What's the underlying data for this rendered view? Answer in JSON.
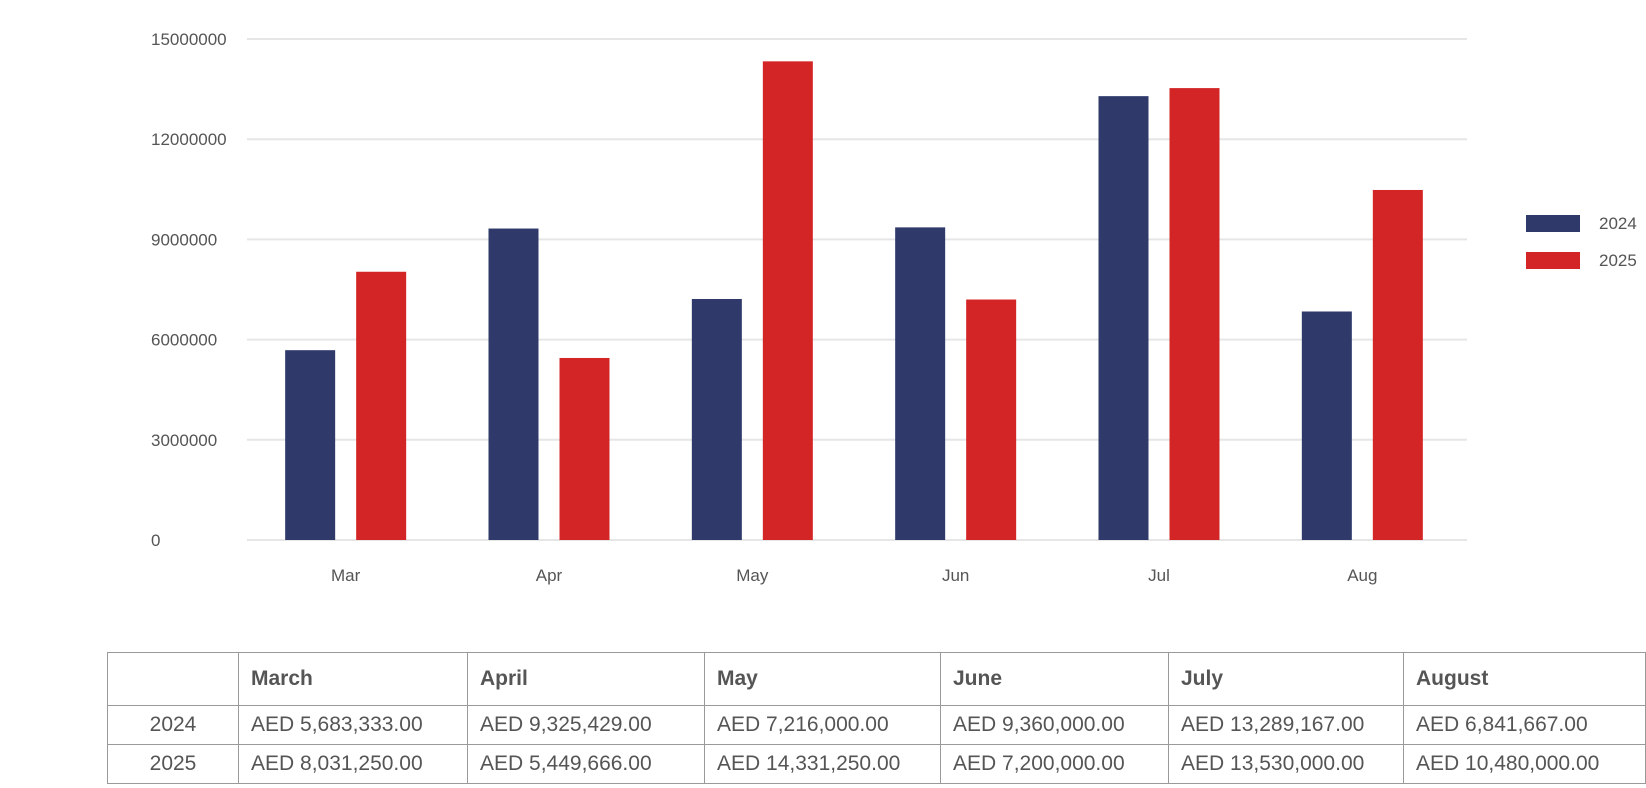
{
  "chart_data": {
    "type": "bar",
    "categories": [
      "Mar",
      "Apr",
      "May",
      "Jun",
      "Jul",
      "Aug"
    ],
    "series": [
      {
        "name": "2024",
        "color": "#2f3a6b",
        "values": [
          5683333,
          9325429,
          7216000,
          9360000,
          13289167,
          6841667
        ]
      },
      {
        "name": "2025",
        "color": "#d32526",
        "values": [
          8031250,
          5449666,
          14331250,
          7200000,
          13530000,
          10480000
        ]
      }
    ],
    "ylim": [
      0,
      15000000
    ],
    "yticks": [
      "0",
      "3000000",
      "6000000",
      "9000000",
      "12000000",
      "15000000"
    ],
    "grid": true,
    "legend_position": "right",
    "title": "",
    "xlabel": "",
    "ylabel": ""
  },
  "table": {
    "headers": [
      "",
      "March",
      "April",
      "May",
      "June",
      "July",
      "August"
    ],
    "rows": [
      {
        "label": "2024",
        "cells": [
          "AED 5,683,333.00",
          "AED 9,325,429.00",
          "AED 7,216,000.00",
          "AED 9,360,000.00",
          "AED 13,289,167.00",
          "AED 6,841,667.00"
        ]
      },
      {
        "label": "2025",
        "cells": [
          "AED 8,031,250.00",
          "AED 5,449,666.00",
          "AED 14,331,250.00",
          "AED 7,200,000.00",
          "AED 13,530,000.00",
          "AED 10,480,000.00"
        ]
      }
    ]
  }
}
